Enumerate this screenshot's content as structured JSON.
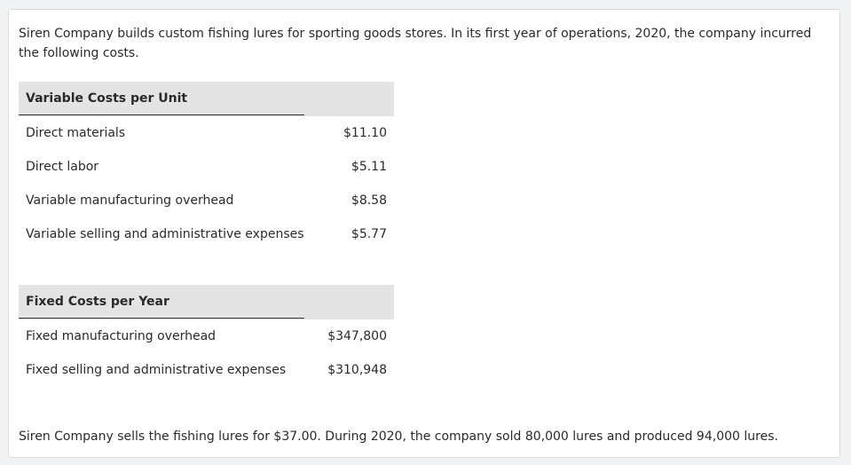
{
  "intro_text": "Siren Company builds custom fishing lures for sporting goods stores. In its first year of operations, 2020, the company incurred the following costs.",
  "variable_costs": {
    "header": "Variable Costs per Unit",
    "rows": [
      {
        "label": "Direct materials",
        "value": "$11.10"
      },
      {
        "label": "Direct labor",
        "value": "$5.11"
      },
      {
        "label": "Variable manufacturing overhead",
        "value": "$8.58"
      },
      {
        "label": "Variable selling and administrative expenses",
        "value": "$5.77"
      }
    ]
  },
  "fixed_costs": {
    "header": "Fixed Costs per Year",
    "rows": [
      {
        "label": "Fixed manufacturing overhead",
        "value": "$347,800"
      },
      {
        "label": "Fixed selling and administrative expenses",
        "value": "$310,948"
      }
    ]
  },
  "closing_text": "Siren Company sells the fishing lures for $37.00. During 2020, the company sold 80,000 lures and produced 94,000 lures."
}
